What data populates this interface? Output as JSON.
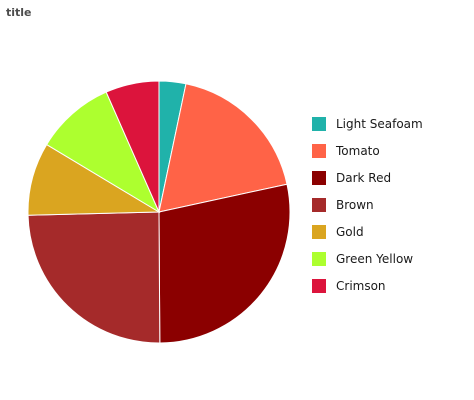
{
  "chart_data": {
    "type": "pie",
    "title": "title",
    "legend_position": "right",
    "categories": [
      "Light Seafoam",
      "Tomato",
      "Dark Red",
      "Brown",
      "Gold",
      "Green Yellow",
      "Crimson"
    ],
    "values": [
      3.3,
      18.3,
      28.3,
      24.7,
      9.0,
      9.8,
      6.6
    ],
    "colors": [
      "#20B2AA",
      "#FF6347",
      "#8B0000",
      "#A52A2A",
      "#DAA520",
      "#ADFF2F",
      "#DC143C"
    ]
  }
}
